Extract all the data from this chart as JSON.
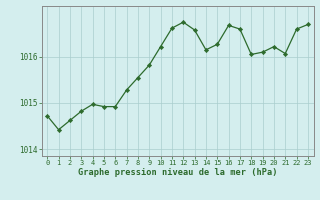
{
  "x": [
    0,
    1,
    2,
    3,
    4,
    5,
    6,
    7,
    8,
    9,
    10,
    11,
    12,
    13,
    14,
    15,
    16,
    17,
    18,
    19,
    20,
    21,
    22,
    23
  ],
  "y": [
    1014.72,
    1014.42,
    1014.62,
    1014.82,
    1014.97,
    1014.92,
    1014.92,
    1015.28,
    1015.55,
    1015.82,
    1016.22,
    1016.62,
    1016.75,
    1016.58,
    1016.15,
    1016.27,
    1016.68,
    1016.6,
    1016.05,
    1016.1,
    1016.22,
    1016.07,
    1016.6,
    1016.7
  ],
  "xlabel": "Graphe pression niveau de la mer (hPa)",
  "yticks": [
    1014,
    1015,
    1016
  ],
  "xtick_labels": [
    "0",
    "1",
    "2",
    "3",
    "4",
    "5",
    "6",
    "7",
    "8",
    "9",
    "10",
    "11",
    "12",
    "13",
    "14",
    "15",
    "16",
    "17",
    "18",
    "19",
    "20",
    "21",
    "22",
    "23"
  ],
  "line_color": "#2d6b2d",
  "marker_color": "#2d6b2d",
  "bg_color": "#d4eeee",
  "grid_color": "#aacece",
  "border_color": "#888888",
  "xlim": [
    -0.5,
    23.5
  ],
  "ylim": [
    1013.85,
    1017.1
  ],
  "fig_width": 3.2,
  "fig_height": 2.0,
  "dpi": 100
}
